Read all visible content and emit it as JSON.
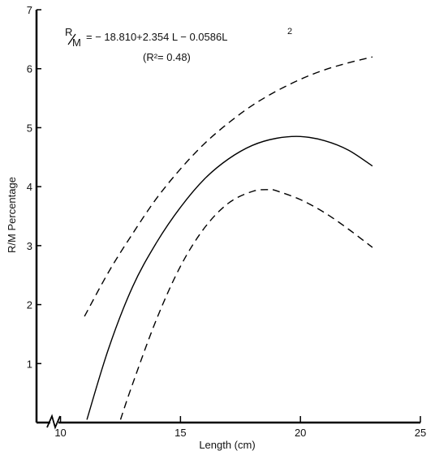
{
  "chart_data": {
    "type": "line",
    "xlabel": "Length (cm)",
    "ylabel": "R/M  Percentage",
    "xlim": [
      9,
      25
    ],
    "ylim": [
      0,
      7
    ],
    "axis_break": "x",
    "x_ticks": [
      "10",
      "15",
      "20",
      "25"
    ],
    "y_ticks": [
      "1",
      "2",
      "3",
      "4",
      "5",
      "6",
      "7"
    ],
    "annotation": {
      "r": "R",
      "m": "M",
      "equation": "= − 18.810+2.354 L − 0.0586L",
      "exponent": "2",
      "r_squared": "(R²= 0.48)"
    },
    "series": [
      {
        "style": "dashed",
        "x": [
          11,
          12,
          13,
          14,
          15,
          16,
          17,
          18,
          19,
          20,
          21,
          22,
          23
        ],
        "y": [
          1.8,
          2.55,
          3.2,
          3.8,
          4.3,
          4.73,
          5.08,
          5.38,
          5.62,
          5.82,
          5.98,
          6.1,
          6.2
        ]
      },
      {
        "style": "solid",
        "x": [
          11.1,
          12,
          13,
          14,
          15,
          16,
          17,
          18,
          19,
          20,
          21,
          22,
          23
        ],
        "y": [
          0.05,
          1.25,
          2.3,
          3.05,
          3.65,
          4.13,
          4.47,
          4.7,
          4.82,
          4.85,
          4.78,
          4.62,
          4.35
        ]
      },
      {
        "style": "dashed",
        "x": [
          12.5,
          13,
          14,
          15,
          16,
          17,
          18,
          18.7,
          19,
          20,
          21,
          22,
          23
        ],
        "y": [
          0.05,
          0.65,
          1.75,
          2.65,
          3.3,
          3.72,
          3.92,
          3.95,
          3.93,
          3.78,
          3.56,
          3.28,
          2.97
        ]
      }
    ]
  }
}
